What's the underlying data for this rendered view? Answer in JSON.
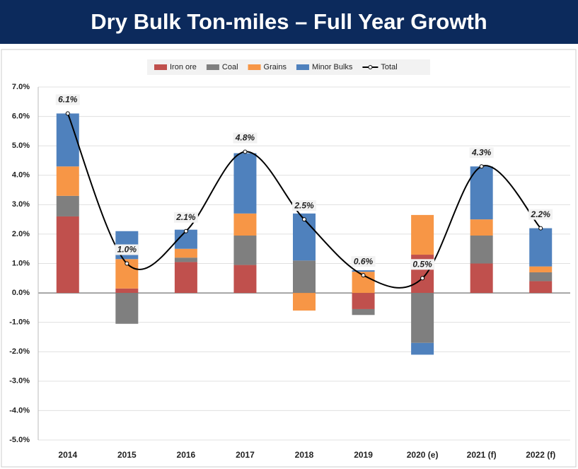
{
  "chart_data": {
    "type": "bar",
    "stacked": true,
    "title": "Dry Bulk Ton-miles – Full Year Growth",
    "categories": [
      "2014",
      "2015",
      "2016",
      "2017",
      "2018",
      "2019",
      "2020 (e)",
      "2021 (f)",
      "2022 (f)"
    ],
    "series": [
      {
        "name": "Iron ore",
        "color": "#c0504d",
        "values": [
          2.6,
          0.15,
          1.05,
          0.95,
          0,
          -0.55,
          1.3,
          1.0,
          0.4
        ]
      },
      {
        "name": "Coal",
        "color": "#7f7f7f",
        "values": [
          0.7,
          -1.05,
          0.15,
          1.0,
          1.1,
          -0.2,
          -1.7,
          0.95,
          0.3
        ]
      },
      {
        "name": "Grains",
        "color": "#f79646",
        "values": [
          1.0,
          1.0,
          0.3,
          0.75,
          -0.6,
          0.72,
          1.35,
          0.55,
          0.2
        ]
      },
      {
        "name": "Minor Bulks",
        "color": "#4f81bd",
        "values": [
          1.8,
          0.95,
          0.65,
          2.05,
          1.6,
          0.05,
          -0.4,
          1.8,
          1.3
        ]
      },
      {
        "name": "Total",
        "type": "line",
        "color": "#000000",
        "values": [
          6.1,
          1.0,
          2.1,
          4.8,
          2.5,
          0.6,
          0.5,
          4.3,
          2.2
        ],
        "value_labels": [
          "6.1%",
          "1.0%",
          "2.1%",
          "4.8%",
          "2.5%",
          "0.6%",
          "0.5%",
          "4.3%",
          "2.2%"
        ]
      }
    ],
    "ylim": [
      -5,
      7
    ],
    "yticks": [
      {
        "value": -5,
        "label": "-5.0%"
      },
      {
        "value": -4,
        "label": "-4.0%"
      },
      {
        "value": -3,
        "label": "-3.0%"
      },
      {
        "value": -2,
        "label": "-2.0%"
      },
      {
        "value": -1,
        "label": "-1.0%"
      },
      {
        "value": 0,
        "label": "0.0%"
      },
      {
        "value": 1,
        "label": "1.0%"
      },
      {
        "value": 2,
        "label": "2.0%"
      },
      {
        "value": 3,
        "label": "3.0%"
      },
      {
        "value": 4,
        "label": "4.0%"
      },
      {
        "value": 5,
        "label": "5.0%"
      },
      {
        "value": 6,
        "label": "6.0%"
      },
      {
        "value": 7,
        "label": "7.0%"
      }
    ],
    "grid": true,
    "legend": "top"
  }
}
